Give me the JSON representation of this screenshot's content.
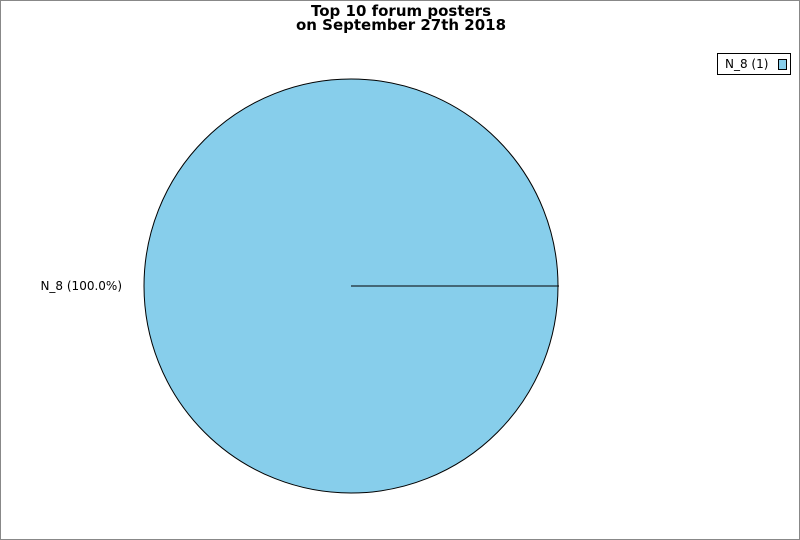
{
  "chart_data": {
    "type": "pie",
    "title": "Top 10 forum posters",
    "subtitle": "on September 27th 2018",
    "slices": [
      {
        "label": "N_8",
        "value": 1,
        "percent": 100.0,
        "color": "#87CEEB",
        "slice_label": "N_8 (100.0%)",
        "legend_label": "N_8 (1)"
      }
    ],
    "legend_position": "top-right"
  }
}
